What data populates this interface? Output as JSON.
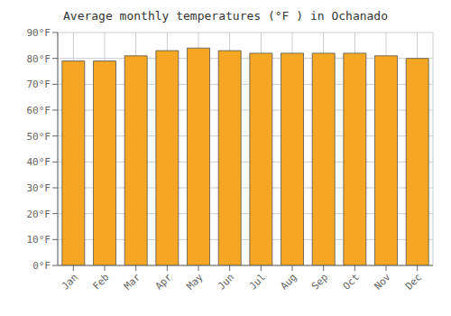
{
  "chart_data": {
    "type": "bar",
    "title": "Average monthly temperatures (°F ) in Ochanado",
    "categories": [
      "Jan",
      "Feb",
      "Mar",
      "Apr",
      "May",
      "Jun",
      "Jul",
      "Aug",
      "Sep",
      "Oct",
      "Nov",
      "Dec"
    ],
    "values": [
      79,
      79,
      81,
      83,
      84,
      83,
      82,
      82,
      82,
      82,
      81,
      80
    ],
    "color": "#F5A623",
    "ylim": [
      0,
      90
    ],
    "yticks": [
      {
        "value": 0,
        "label": "0°F"
      },
      {
        "value": 10,
        "label": "10°F"
      },
      {
        "value": 20,
        "label": "20°F"
      },
      {
        "value": 30,
        "label": "30°F"
      },
      {
        "value": 40,
        "label": "40°F"
      },
      {
        "value": 50,
        "label": "50°F"
      },
      {
        "value": 60,
        "label": "60°F"
      },
      {
        "value": 70,
        "label": "70°F"
      },
      {
        "value": 80,
        "label": "80°F"
      },
      {
        "value": 90,
        "label": "90°F"
      }
    ],
    "grid": true
  }
}
